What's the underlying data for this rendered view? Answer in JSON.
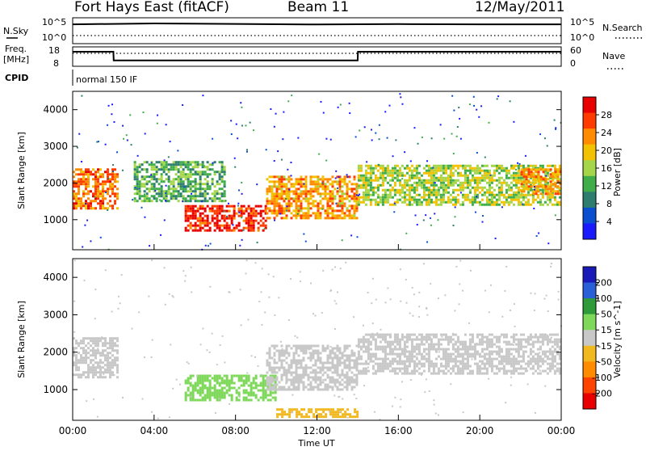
{
  "header": {
    "station": "Fort Hays East (fitACF)",
    "beam": "Beam 11",
    "date": "12/May/2011"
  },
  "side_labels": {
    "nsky": "N.Sky",
    "nsearch": "N.Search",
    "freq": "Freq.",
    "freq_unit": "[MHz]",
    "nave": "Nave",
    "cpid": "CPID",
    "cpid_value": "normal 150 IF",
    "nsky_ticks": [
      "10^5",
      "10^0"
    ],
    "nsearch_ticks": [
      "10^5",
      "10^0"
    ],
    "freq_ticks": [
      "18",
      "8"
    ],
    "nave_ticks": [
      "60",
      "0"
    ]
  },
  "colors": {
    "power": [
      "#1a1aff",
      "#0a4fd0",
      "#2e7d6e",
      "#3fae4a",
      "#a5d64a",
      "#f2c200",
      "#ff8c00",
      "#ff3b00",
      "#e80000"
    ],
    "velocity": [
      "#1a1ab8",
      "#2b5fd8",
      "#2e9a3a",
      "#7ed85a",
      "#c8c8c8",
      "#f2b820",
      "#ff8c00",
      "#ff4400",
      "#e80000"
    ]
  },
  "chart_data": [
    {
      "type": "line",
      "panel": "noise",
      "x": [
        "00:00",
        "04:00",
        "08:00",
        "12:00",
        "16:00",
        "20:00",
        "00:00"
      ],
      "series": [
        {
          "name": "N.Sky",
          "values": [
            10000,
            15000,
            12000,
            9000,
            11000,
            10000,
            10000
          ]
        },
        {
          "name": "N.Search",
          "values": [
            1,
            1,
            1,
            1,
            1,
            1,
            1
          ]
        }
      ],
      "ylabel": "N.Sky",
      "y2label": "N.Search"
    },
    {
      "type": "line",
      "panel": "frequency",
      "x": [
        "00:00",
        "02:00",
        "02:01",
        "14:00",
        "14:01",
        "24:00"
      ],
      "series": [
        {
          "name": "Freq.",
          "values": [
            15.5,
            15.5,
            11,
            11,
            15.5,
            15.5
          ]
        },
        {
          "name": "Nave",
          "values": [
            30,
            30,
            30,
            30,
            30,
            30
          ]
        }
      ],
      "ylim": [
        8,
        18
      ],
      "y2lim": [
        0,
        60
      ]
    },
    {
      "type": "heatmap",
      "panel": "power",
      "xlabel": "",
      "ylabel": "Slant Range [km]",
      "ylim": [
        180,
        4500
      ],
      "yticks": [
        "4000",
        "3000",
        "2000",
        "1000"
      ],
      "colorbar": {
        "label": "Power [dB]",
        "ticks": [
          "28",
          "24",
          "20",
          "16",
          "12",
          "8",
          "4"
        ]
      },
      "regions": [
        {
          "t_start": 0.0,
          "t_end": 2.3,
          "r_start": 1300,
          "r_end": 2400,
          "value": 24
        },
        {
          "t_start": 3.0,
          "t_end": 7.5,
          "r_start": 1500,
          "r_end": 2600,
          "value": 12
        },
        {
          "t_start": 5.5,
          "t_end": 9.5,
          "r_start": 700,
          "r_end": 1400,
          "value": 28
        },
        {
          "t_start": 9.5,
          "t_end": 14.0,
          "r_start": 1000,
          "r_end": 2200,
          "value": 22
        },
        {
          "t_start": 14.0,
          "t_end": 24.0,
          "r_start": 1400,
          "r_end": 2500,
          "value": 16
        },
        {
          "t_start": 22.0,
          "t_end": 24.0,
          "r_start": 1700,
          "r_end": 2400,
          "value": 22
        }
      ]
    },
    {
      "type": "heatmap",
      "panel": "velocity",
      "xlabel": "Time UT",
      "ylabel": "Slant Range [km]",
      "ylim": [
        180,
        4500
      ],
      "yticks": [
        "4000",
        "3000",
        "2000",
        "1000"
      ],
      "xticks": [
        "00:00",
        "04:00",
        "08:00",
        "12:00",
        "16:00",
        "20:00",
        "00:00"
      ],
      "colorbar": {
        "label": "Velocity [m s^-1]",
        "ticks": [
          "200",
          "100",
          "50",
          "15",
          "-15",
          "-50",
          "-100",
          "-200"
        ]
      },
      "regions": [
        {
          "t_start": 0.0,
          "t_end": 2.3,
          "r_start": 1300,
          "r_end": 2400,
          "value": 0
        },
        {
          "t_start": 5.5,
          "t_end": 10.0,
          "r_start": 700,
          "r_end": 1400,
          "value": 40
        },
        {
          "t_start": 9.5,
          "t_end": 14.0,
          "r_start": 1000,
          "r_end": 2200,
          "value": 0
        },
        {
          "t_start": 14.0,
          "t_end": 24.0,
          "r_start": 1400,
          "r_end": 2500,
          "value": 0
        },
        {
          "t_start": 10.0,
          "t_end": 14.0,
          "r_start": 250,
          "r_end": 500,
          "value": -40
        }
      ]
    }
  ]
}
